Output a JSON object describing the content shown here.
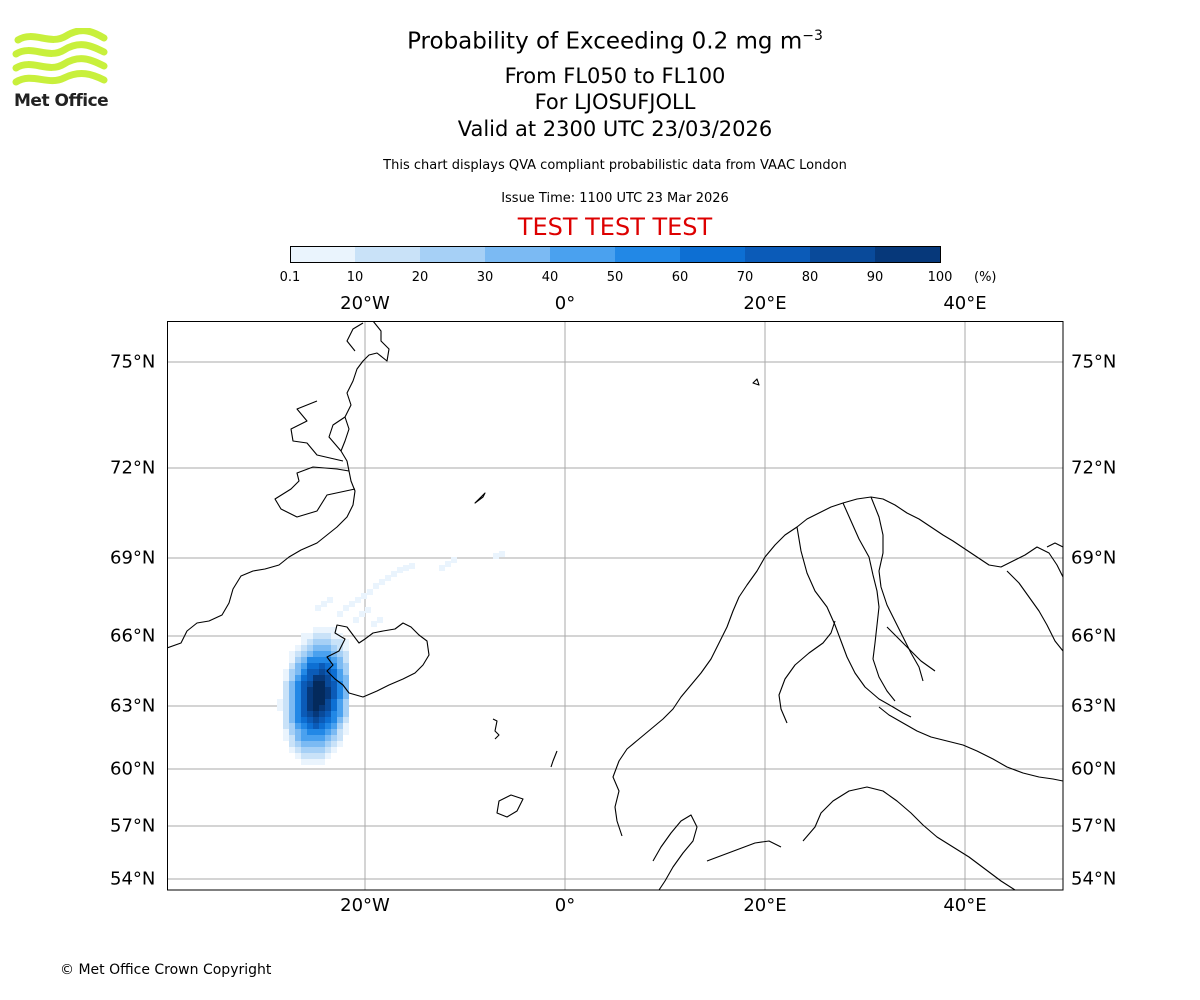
{
  "branding": {
    "logo_text": "Met Office"
  },
  "title": {
    "main": "Probability of Exceeding 0.2 mg m",
    "main_superscript": "−3",
    "line2": "From FL050 to FL100",
    "line3": "For LJOSUFJOLL",
    "line4": "Valid at 2300 UTC 23/03/2026"
  },
  "info": {
    "description": "This chart displays QVA compliant probabilistic data from VAAC London",
    "issue_time": "Issue Time: 1100 UTC 23 Mar 2026",
    "test_banner": "TEST TEST TEST",
    "test_color": "#dd0000"
  },
  "colorbar": {
    "tick_labels": [
      "0.1",
      "10",
      "20",
      "30",
      "40",
      "50",
      "60",
      "70",
      "80",
      "90",
      "100"
    ],
    "unit": "(%)",
    "colors": [
      "#eaf4fd",
      "#c9e2f8",
      "#a6d0f6",
      "#7bbaf3",
      "#4aa1ef",
      "#2288e6",
      "#0d6fd3",
      "#0b5bb8",
      "#094a9a",
      "#06387a",
      "#042a5c"
    ]
  },
  "map": {
    "lon_labels": [
      "20°W",
      "0°",
      "20°E",
      "40°E"
    ],
    "lat_labels": [
      "75°N",
      "72°N",
      "69°N",
      "66°N",
      "63°N",
      "60°N",
      "57°N",
      "54°N"
    ],
    "gridline_color": "#aaaaaa",
    "coastline_color": "#000000"
  },
  "footer": {
    "copyright": "© Met Office Crown Copyright"
  }
}
